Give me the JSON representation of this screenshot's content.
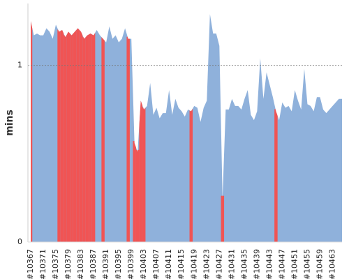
{
  "chart_data": {
    "type": "area",
    "y_label": "mins",
    "categories": [
      "#10367",
      null,
      null,
      null,
      "#10371",
      null,
      null,
      null,
      "#10375",
      null,
      null,
      null,
      "#10379",
      null,
      null,
      null,
      "#10383",
      null,
      null,
      null,
      "#10387",
      null,
      null,
      null,
      "#10391",
      null,
      null,
      null,
      "#10395",
      null,
      null,
      null,
      "#10399",
      null,
      null,
      null,
      "#10403",
      null,
      null,
      null,
      "#10407",
      null,
      null,
      null,
      "#10411",
      null,
      null,
      null,
      "#10415",
      null,
      null,
      null,
      "#10419",
      null,
      null,
      null,
      "#10423",
      null,
      null,
      null,
      "#10427",
      null,
      null,
      null,
      "#10431",
      null,
      null,
      null,
      "#10435",
      null,
      null,
      null,
      "#10439",
      null,
      null,
      null,
      "#10443",
      null,
      null,
      null,
      "#10447",
      null,
      null,
      null,
      "#10451",
      null,
      null,
      null,
      "#10455",
      null,
      null,
      null,
      "#10459",
      null,
      null,
      null,
      "#10463",
      null,
      null,
      null
    ],
    "values": [
      1.25,
      1.17,
      1.18,
      1.17,
      1.17,
      1.21,
      1.19,
      1.15,
      1.23,
      1.19,
      1.2,
      1.16,
      1.19,
      1.17,
      1.19,
      1.21,
      1.19,
      1.15,
      1.17,
      1.18,
      1.17,
      1.2,
      1.17,
      1.15,
      1.13,
      1.22,
      1.15,
      1.17,
      1.13,
      1.15,
      1.21,
      1.15,
      1.15,
      0.56,
      0.51,
      0.8,
      0.75,
      0.77,
      0.9,
      0.72,
      0.76,
      0.7,
      0.73,
      0.73,
      0.86,
      0.72,
      0.81,
      0.76,
      0.74,
      0.71,
      0.75,
      0.74,
      0.77,
      0.76,
      0.68,
      0.76,
      0.8,
      1.29,
      1.18,
      1.18,
      1.11,
      0.25,
      0.75,
      0.75,
      0.81,
      0.77,
      0.77,
      0.75,
      0.81,
      0.86,
      0.72,
      0.69,
      0.74,
      1.04,
      0.81,
      0.96,
      0.89,
      0.82,
      0.74,
      0.69,
      0.79,
      0.76,
      0.77,
      0.74,
      0.86,
      0.8,
      0.75,
      0.98,
      0.78,
      0.77,
      0.74,
      0.82,
      0.82,
      0.75,
      0.73,
      0.75,
      0.77,
      0.79,
      0.81,
      0.81
    ],
    "color": "#8fb1db",
    "colors": [
      "#f05454",
      "#8fb1db",
      "#8fb1db",
      "#8fb1db",
      "#8fb1db",
      "#8fb1db",
      "#8fb1db",
      "#8fb1db",
      "#8fb1db",
      "#f05454",
      "#f05454",
      "#f05454",
      "#f05454",
      "#f05454",
      "#f05454",
      "#f05454",
      "#f05454",
      "#f05454",
      "#f05454",
      "#f05454",
      "#f05454",
      "#8fb1db",
      "#8fb1db",
      "#f05454",
      "#8fb1db",
      "#8fb1db",
      "#8fb1db",
      "#8fb1db",
      "#8fb1db",
      "#8fb1db",
      "#8fb1db",
      "#f05454",
      "#8fb1db",
      "#f05454",
      "#f05454",
      "#f05454",
      "#f05454",
      "#8fb1db",
      "#8fb1db",
      "#8fb1db",
      "#8fb1db",
      "#8fb1db",
      "#8fb1db",
      "#8fb1db",
      "#8fb1db",
      "#8fb1db",
      "#8fb1db",
      "#8fb1db",
      "#8fb1db",
      "#8fb1db",
      "#8fb1db",
      "#f05454",
      "#8fb1db",
      "#8fb1db",
      "#8fb1db",
      "#8fb1db",
      "#8fb1db",
      "#8fb1db",
      "#8fb1db",
      "#8fb1db",
      "#8fb1db",
      "#f05454",
      "#8fb1db",
      "#8fb1db",
      "#8fb1db",
      "#8fb1db",
      "#8fb1db",
      "#8fb1db",
      "#8fb1db",
      "#8fb1db",
      "#8fb1db",
      "#8fb1db",
      "#8fb1db",
      "#8fb1db",
      "#8fb1db",
      "#8fb1db",
      "#8fb1db",
      "#8fb1db",
      "#f05454",
      "#8fb1db",
      "#8fb1db",
      "#8fb1db",
      "#8fb1db",
      "#8fb1db",
      "#8fb1db",
      "#8fb1db",
      "#8fb1db",
      "#8fb1db",
      "#8fb1db",
      "#8fb1db",
      "#8fb1db",
      "#8fb1db",
      "#8fb1db",
      "#8fb1db",
      "#8fb1db",
      "#8fb1db",
      "#8fb1db",
      "#8fb1db",
      "#8fb1db",
      "#8fb1db"
    ],
    "ylim": [
      0,
      1.35
    ],
    "yticks": [
      0,
      1
    ],
    "grid": "dashed"
  }
}
